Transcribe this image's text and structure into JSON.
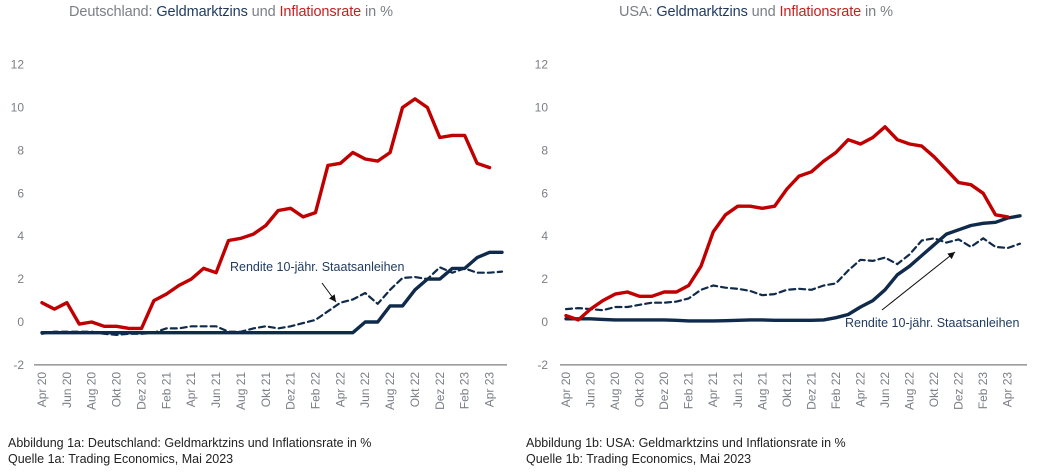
{
  "colors": {
    "inflation": "#c00000",
    "money_market": "#0f2a4a",
    "bond_yield": "#0f2a4a",
    "axis": "#7f7f7f",
    "tick_text": "#7a7f86"
  },
  "chart_data": [
    {
      "type": "line",
      "id": "de",
      "title": {
        "prefix": "Deutschland: ",
        "part1": "Geldmarktzins",
        "mid": " und ",
        "part2": "Inflationsrate",
        "suffix": " in %"
      },
      "xlabel": "",
      "ylabel": "",
      "ylim": [
        -2,
        12
      ],
      "yticks": [
        12,
        10,
        8,
        6,
        4,
        2,
        0,
        -2
      ],
      "x_ticks": [
        "Apr 20",
        "Jun 20",
        "Aug 20",
        "Okt 20",
        "Dez 20",
        "Feb 21",
        "Apr 21",
        "Jun 21",
        "Aug 21",
        "Okt 21",
        "Dez 21",
        "Feb 22",
        "Apr 22",
        "Jun 22",
        "Aug 22",
        "Okt 22",
        "Dez 22",
        "Feb 23",
        "Apr 23"
      ],
      "x": [
        "Apr 20",
        "Mai 20",
        "Jun 20",
        "Jul 20",
        "Aug 20",
        "Sep 20",
        "Okt 20",
        "Nov 20",
        "Dez 20",
        "Jan 21",
        "Feb 21",
        "Mär 21",
        "Apr 21",
        "Mai 21",
        "Jun 21",
        "Jul 21",
        "Aug 21",
        "Sep 21",
        "Okt 21",
        "Nov 21",
        "Dez 21",
        "Jan 22",
        "Feb 22",
        "Mär 22",
        "Apr 22",
        "Mai 22",
        "Jun 22",
        "Jul 22",
        "Aug 22",
        "Sep 22",
        "Okt 22",
        "Nov 22",
        "Dez 22",
        "Jan 23",
        "Feb 23",
        "Mär 23",
        "Apr 23",
        "Mai 23"
      ],
      "series": [
        {
          "name": "Inflationsrate",
          "style": "solid-red",
          "values": [
            0.9,
            0.6,
            0.9,
            -0.1,
            0.0,
            -0.2,
            -0.2,
            -0.3,
            -0.3,
            1.0,
            1.3,
            1.7,
            2.0,
            2.5,
            2.3,
            3.8,
            3.9,
            4.1,
            4.5,
            5.2,
            5.3,
            4.9,
            5.1,
            7.3,
            7.4,
            7.9,
            7.6,
            7.5,
            7.9,
            10.0,
            10.4,
            10.0,
            8.6,
            8.7,
            8.7,
            7.4,
            7.2,
            null
          ]
        },
        {
          "name": "Geldmarktzins",
          "style": "solid-navy",
          "values": [
            -0.5,
            -0.5,
            -0.5,
            -0.5,
            -0.5,
            -0.5,
            -0.5,
            -0.5,
            -0.5,
            -0.5,
            -0.5,
            -0.5,
            -0.5,
            -0.5,
            -0.5,
            -0.5,
            -0.5,
            -0.5,
            -0.5,
            -0.5,
            -0.5,
            -0.5,
            -0.5,
            -0.5,
            -0.5,
            -0.5,
            0.0,
            0.0,
            0.75,
            0.75,
            1.5,
            2.0,
            2.0,
            2.5,
            2.5,
            3.0,
            3.25,
            3.25
          ]
        },
        {
          "name": "Rendite 10-jähr. Staatsanleihen",
          "style": "dashed-navy",
          "values": [
            -0.55,
            -0.45,
            -0.45,
            -0.45,
            -0.45,
            -0.55,
            -0.6,
            -0.55,
            -0.55,
            -0.5,
            -0.3,
            -0.3,
            -0.2,
            -0.2,
            -0.2,
            -0.45,
            -0.45,
            -0.3,
            -0.2,
            -0.3,
            -0.2,
            -0.05,
            0.1,
            0.5,
            0.9,
            1.05,
            1.35,
            0.85,
            1.5,
            2.05,
            2.1,
            2.0,
            2.55,
            2.3,
            2.5,
            2.3,
            2.3,
            2.35
          ]
        }
      ],
      "annotation": {
        "text": "Rendite 10-jähr. Staatsanleihen"
      },
      "caption": {
        "line1": "Abbildung 1a: Deutschland: Geldmarktzins und Inflationsrate in %",
        "line2": "Quelle 1a: Trading Economics, Mai 2023"
      },
      "grid": false,
      "legend": "none"
    },
    {
      "type": "line",
      "id": "us",
      "title": {
        "prefix": "USA: ",
        "part1": "Geldmarktzins",
        "mid": " und ",
        "part2": "Inflationsrate",
        "suffix": " in %"
      },
      "xlabel": "",
      "ylabel": "",
      "ylim": [
        -2,
        12
      ],
      "yticks": [
        12,
        10,
        8,
        6,
        4,
        2,
        0,
        -2
      ],
      "x_ticks": [
        "Apr 20",
        "Jun 20",
        "Aug 20",
        "Okt 20",
        "Dez 20",
        "Feb 21",
        "Apr 21",
        "Jun 21",
        "Aug 21",
        "Okt 21",
        "Dez 21",
        "Feb 22",
        "Apr 22",
        "Jun 22",
        "Aug 22",
        "Okt 22",
        "Dez 22",
        "Feb 23",
        "Apr 23"
      ],
      "x": [
        "Apr 20",
        "Mai 20",
        "Jun 20",
        "Jul 20",
        "Aug 20",
        "Sep 20",
        "Okt 20",
        "Nov 20",
        "Dez 20",
        "Jan 21",
        "Feb 21",
        "Mär 21",
        "Apr 21",
        "Mai 21",
        "Jun 21",
        "Jul 21",
        "Aug 21",
        "Sep 21",
        "Okt 21",
        "Nov 21",
        "Dez 21",
        "Jan 22",
        "Feb 22",
        "Mär 22",
        "Apr 22",
        "Mai 22",
        "Jun 22",
        "Jul 22",
        "Aug 22",
        "Sep 22",
        "Okt 22",
        "Nov 22",
        "Dez 22",
        "Jan 23",
        "Feb 23",
        "Mär 23",
        "Apr 23",
        "Mai 23"
      ],
      "series": [
        {
          "name": "Inflationsrate",
          "style": "solid-red",
          "values": [
            0.3,
            0.1,
            0.6,
            1.0,
            1.3,
            1.4,
            1.2,
            1.2,
            1.4,
            1.4,
            1.7,
            2.6,
            4.2,
            5.0,
            5.4,
            5.4,
            5.3,
            5.4,
            6.2,
            6.8,
            7.0,
            7.5,
            7.9,
            8.5,
            8.3,
            8.6,
            9.1,
            8.5,
            8.3,
            8.2,
            7.7,
            7.1,
            6.5,
            6.4,
            6.0,
            5.0,
            4.9,
            null
          ]
        },
        {
          "name": "Geldmarktzins",
          "style": "solid-navy",
          "values": [
            0.15,
            0.15,
            0.15,
            0.12,
            0.1,
            0.1,
            0.1,
            0.1,
            0.1,
            0.08,
            0.05,
            0.05,
            0.05,
            0.06,
            0.08,
            0.1,
            0.1,
            0.08,
            0.08,
            0.08,
            0.08,
            0.1,
            0.2,
            0.35,
            0.7,
            1.0,
            1.5,
            2.2,
            2.6,
            3.1,
            3.6,
            4.1,
            4.3,
            4.5,
            4.6,
            4.65,
            4.85,
            4.95
          ]
        },
        {
          "name": "Rendite 10-jähr. Staatsanleihen",
          "style": "dashed-navy",
          "values": [
            0.6,
            0.65,
            0.6,
            0.55,
            0.7,
            0.7,
            0.8,
            0.9,
            0.9,
            0.95,
            1.1,
            1.5,
            1.7,
            1.6,
            1.55,
            1.45,
            1.25,
            1.3,
            1.5,
            1.55,
            1.5,
            1.7,
            1.8,
            2.4,
            2.9,
            2.85,
            3.0,
            2.7,
            3.15,
            3.8,
            3.9,
            3.7,
            3.85,
            3.5,
            3.9,
            3.5,
            3.45,
            3.65
          ]
        }
      ],
      "annotation": {
        "text": "Rendite 10-jähr. Staatsanleihen"
      },
      "caption": {
        "line1": "Abbildung 1b: USA: Geldmarktzins und Inflationsrate in %",
        "line2": "Quelle 1b: Trading Economics, Mai 2023"
      },
      "grid": false,
      "legend": "none"
    }
  ]
}
